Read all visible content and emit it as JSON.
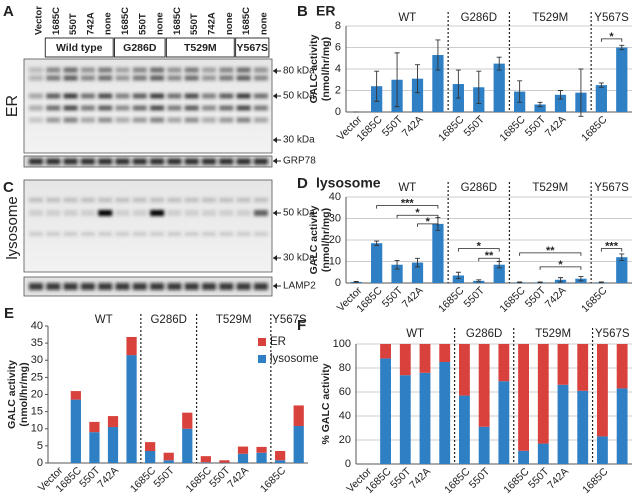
{
  "panel_A": {
    "letter": "A",
    "lanes": [
      "Vector",
      "1685C",
      "550T",
      "742A",
      "none",
      "1685C",
      "550T",
      "none",
      "1685C",
      "550T",
      "742A",
      "none",
      "1685C",
      "none"
    ],
    "groups": [
      "Wild type",
      "G286D",
      "T529M",
      "Y567S"
    ],
    "label": "ER",
    "markers": [
      "80 kDa",
      "50 kDa",
      "30 kDa"
    ],
    "loading_control": "GRP78"
  },
  "panel_C": {
    "letter": "C",
    "label": "lysosome",
    "markers": [
      "50 kDa",
      "30 kDa"
    ],
    "loading_control": "LAMP2"
  },
  "chart_data": [
    {
      "type": "bar",
      "panel": "B",
      "title": "ER",
      "y_label": [
        "GALC activity",
        "(nmol/hr/mg)"
      ],
      "categories": [
        "Vector",
        "1685C",
        "550T",
        "742A",
        null,
        "1685C",
        "550T",
        null,
        "1685C",
        "550T",
        "742A",
        null,
        "1685C",
        null
      ],
      "groups": [
        "WT",
        "G286D",
        "T529M",
        "Y567S"
      ],
      "values": [
        0,
        2.4,
        3.0,
        3.1,
        5.3,
        2.6,
        2.3,
        4.5,
        1.9,
        0.7,
        1.6,
        1.8,
        2.5,
        6.0
      ],
      "errors": [
        0,
        1.4,
        2.5,
        1.3,
        1.4,
        1.3,
        1.5,
        0.6,
        1.0,
        0.2,
        0.4,
        2.2,
        0.2,
        0.2
      ],
      "color": "#2e7fc4",
      "ylim": [
        0,
        8
      ],
      "yticks": [
        0,
        2,
        4,
        6,
        8
      ],
      "grid": true,
      "annotations": [
        "*"
      ]
    },
    {
      "type": "bar",
      "panel": "D",
      "title": "lysosome",
      "y_label": [
        "GALC activity",
        "(nmol/hr/mg)"
      ],
      "categories": [
        "Vector",
        "1685C",
        "550T",
        "742A",
        null,
        "1685C",
        "550T",
        null,
        "1685C",
        "550T",
        "742A",
        null,
        "1685C",
        null
      ],
      "groups": [
        "WT",
        "G286D",
        "T529M",
        "Y567S"
      ],
      "values": [
        0.5,
        18.5,
        8.5,
        9.5,
        27.5,
        3.5,
        1.0,
        8.5,
        0.3,
        0.3,
        1.5,
        2.0,
        0.3,
        12
      ],
      "errors": [
        0.2,
        1,
        2,
        2,
        3,
        1.5,
        0.5,
        1.5,
        0.2,
        0.2,
        1,
        1,
        0.2,
        1.5
      ],
      "color": "#2e7fc4",
      "ylim": [
        0,
        40
      ],
      "yticks": [
        0,
        10,
        20,
        30,
        40
      ],
      "grid": true,
      "annotations": [
        "***",
        "*",
        "*",
        "*",
        "**",
        "**",
        "*",
        "***"
      ]
    },
    {
      "type": "stacked_bar",
      "panel": "E",
      "y_label": [
        "GALC activity",
        "(nmol/hr/mg)"
      ],
      "categories": [
        "Vector",
        "1685C",
        "550T",
        "742A",
        null,
        "1685C",
        "550T",
        null,
        "1685C",
        "550T",
        "742A",
        null,
        "1685C",
        null
      ],
      "groups": [
        "WT",
        "G286D",
        "T529M",
        "Y567S"
      ],
      "series": [
        {
          "name": "ER",
          "color": "#d9413c",
          "values": [
            0,
            2.5,
            3,
            3.2,
            5.3,
            2.6,
            2.2,
            4.7,
            1.8,
            0.7,
            2.1,
            1.7,
            2.7,
            6
          ]
        },
        {
          "name": "lysosome",
          "color": "#2e7fc4",
          "values": [
            0,
            18.5,
            9,
            10.5,
            31.5,
            3.5,
            0.8,
            10,
            0.2,
            0.1,
            2.7,
            3,
            0.8,
            10.8
          ]
        }
      ],
      "ylim": [
        0,
        40
      ],
      "yticks": [
        0,
        5,
        10,
        15,
        20,
        25,
        30,
        35,
        40
      ],
      "grid": false,
      "legend": "upper right"
    },
    {
      "type": "stacked_bar",
      "panel": "F",
      "y_label": [
        "% GALC activity"
      ],
      "categories": [
        "Vector",
        "1685C",
        "550T",
        "742A",
        null,
        "1685C",
        "550T",
        null,
        "1685C",
        "550T",
        "742A",
        null,
        "1685C",
        null
      ],
      "groups": [
        "WT",
        "G286D",
        "T529M",
        "Y567S"
      ],
      "series": [
        {
          "color": "#d9413c",
          "values": [
            0,
            12,
            26,
            24,
            15,
            43,
            69,
            31,
            89,
            83,
            34,
            39,
            77,
            37
          ]
        },
        {
          "color": "#2e7fc4",
          "values": [
            0,
            88,
            74,
            76,
            85,
            57,
            31,
            69,
            11,
            17,
            66,
            61,
            23,
            63
          ]
        }
      ],
      "ylim": [
        0,
        100
      ],
      "yticks": [
        0,
        20,
        40,
        60,
        80,
        100
      ],
      "grid": true
    }
  ]
}
